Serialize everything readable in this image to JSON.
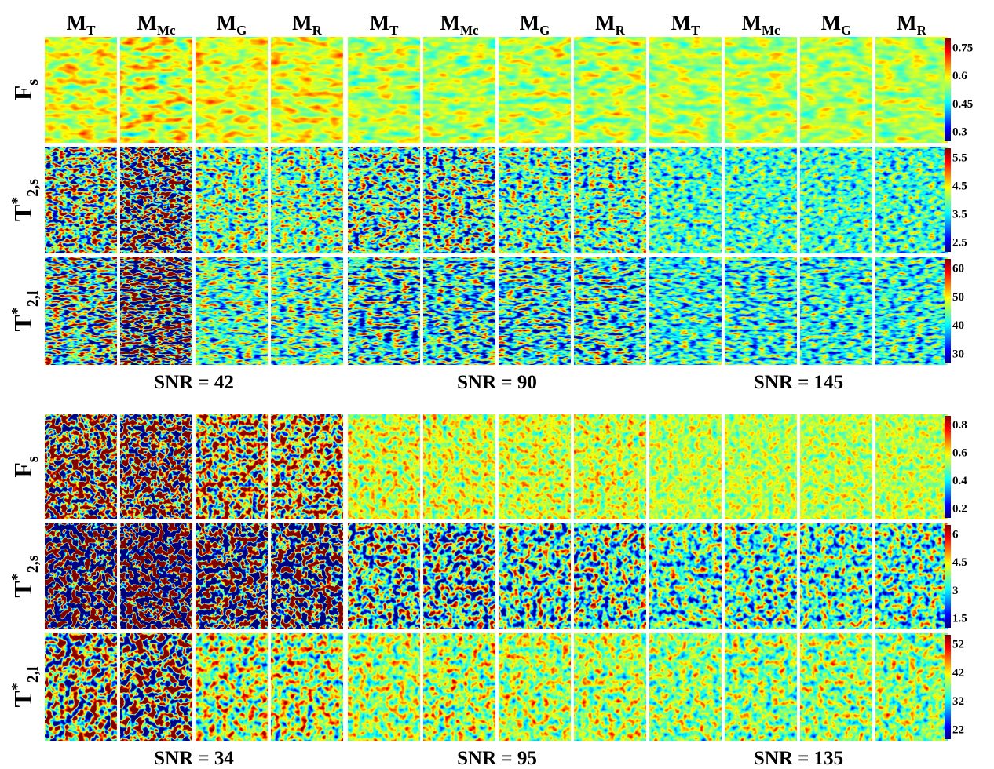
{
  "column_headers": [
    {
      "main": "M",
      "sub": "T"
    },
    {
      "main": "M",
      "sub": "Mc"
    },
    {
      "main": "M",
      "sub": "G"
    },
    {
      "main": "M",
      "sub": "R"
    },
    {
      "main": "M",
      "sub": "T"
    },
    {
      "main": "M",
      "sub": "Mc"
    },
    {
      "main": "M",
      "sub": "G"
    },
    {
      "main": "M",
      "sub": "R"
    },
    {
      "main": "M",
      "sub": "T"
    },
    {
      "main": "M",
      "sub": "Mc"
    },
    {
      "main": "M",
      "sub": "G"
    },
    {
      "main": "M",
      "sub": "R"
    }
  ],
  "panels": [
    {
      "row_labels": [
        {
          "main": "F",
          "sub": "s"
        },
        {
          "main": "T",
          "sup": "*",
          "sub": "2,s"
        },
        {
          "main": "T",
          "sup": "*",
          "sub": "2,l"
        }
      ],
      "colorbars": [
        [
          0.75,
          0.6,
          0.45,
          0.3
        ],
        [
          5.5,
          4.5,
          3.5,
          2.5
        ],
        [
          60,
          50,
          40,
          30
        ]
      ],
      "snr_labels": [
        "SNR = 42",
        "SNR = 90",
        "SNR = 145"
      ]
    },
    {
      "row_labels": [
        {
          "main": "F",
          "sub": "s"
        },
        {
          "main": "T",
          "sup": "*",
          "sub": "2,s"
        },
        {
          "main": "T",
          "sup": "*",
          "sub": "2,l"
        }
      ],
      "colorbars": [
        [
          0.8,
          0.6,
          0.4,
          0.2
        ],
        [
          6,
          4.5,
          3,
          1.5
        ],
        [
          52,
          42,
          32,
          22
        ]
      ],
      "snr_labels": [
        "SNR = 34",
        "SNR = 95",
        "SNR = 135"
      ]
    }
  ]
}
